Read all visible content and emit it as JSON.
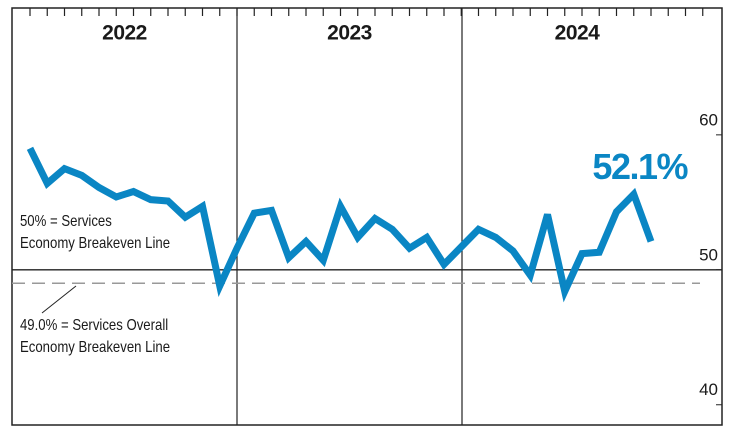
{
  "chart_data": {
    "type": "line",
    "categories": [
      null,
      null,
      null,
      null,
      null,
      null,
      null,
      null,
      null,
      null,
      null,
      null,
      null,
      null,
      null,
      null,
      null,
      null,
      null,
      null,
      null,
      null,
      null,
      null,
      null,
      null,
      null,
      null,
      null,
      null,
      null,
      null,
      null,
      null,
      null,
      null,
      null
    ],
    "periods": [
      "2022",
      "2023",
      "2024"
    ],
    "series": [
      {
        "color": "#0a86c4",
        "values": [
          59.0,
          56.4,
          57.5,
          57.0,
          56.1,
          55.4,
          55.8,
          55.2,
          55.1,
          53.9,
          54.7,
          48.8,
          51.6,
          54.2,
          54.4,
          50.9,
          52.1,
          50.7,
          54.7,
          52.4,
          53.8,
          53.0,
          51.6,
          52.4,
          50.4,
          51.7,
          53.0,
          52.4,
          51.4,
          49.6,
          54.1,
          48.4,
          51.2,
          51.3,
          54.3,
          55.6,
          52.1
        ],
        "value_labels": [
          null,
          null,
          null,
          null,
          null,
          null,
          null,
          null,
          null,
          null,
          null,
          null,
          null,
          null,
          null,
          null,
          null,
          null,
          null,
          null,
          null,
          null,
          null,
          null,
          null,
          null,
          null,
          null,
          null,
          null,
          null,
          null,
          null,
          null,
          null,
          null,
          "52.1%"
        ]
      }
    ],
    "ylim": [
      38.5,
      69.4
    ],
    "yticks": [
      40,
      50,
      60
    ],
    "reference_lines": [
      {
        "value": 50,
        "style": "solid",
        "label": [
          "50% = Services",
          "Economy Breakeven Line"
        ]
      },
      {
        "value": 49.0,
        "style": "dashed",
        "label": [
          "49.0% = Services Overall",
          "Economy Breakeven Line"
        ]
      }
    ]
  }
}
